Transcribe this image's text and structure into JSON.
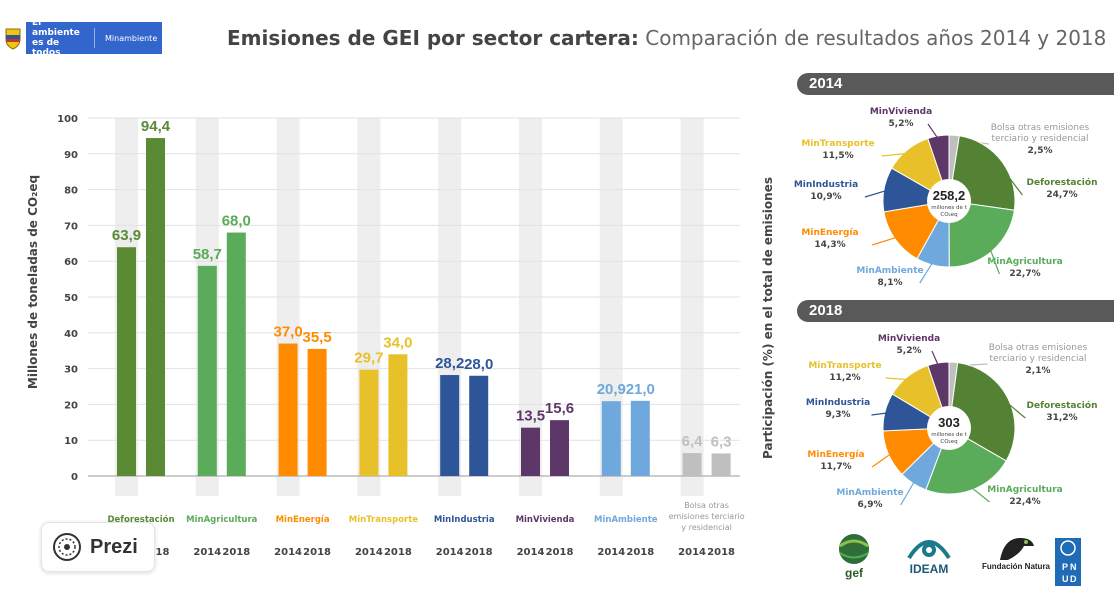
{
  "header": {
    "gov_line1": "El ambiente",
    "gov_line2": "es de todos",
    "ministry": "Minambiente",
    "title_bold": "Emisiones de GEI por sector cartera:",
    "title_rest": "Comparación de resultados años 2014 y 2018"
  },
  "prezi": {
    "label": "Prezi"
  },
  "logos": {
    "gef": "gef",
    "ideam": "IDEAM",
    "natura": "Fundación Natura",
    "pnud": "PNUD"
  },
  "chart_data": [
    {
      "type": "bar",
      "ylabel": "Millones de toneladas de CO₂eq",
      "ylim": [
        0,
        100
      ],
      "yticks": [
        0,
        10,
        20,
        30,
        40,
        50,
        60,
        70,
        80,
        90,
        100
      ],
      "grid": true,
      "categories": [
        "Deforestación",
        "MinAgricultura",
        "MinEnergía",
        "MinTransporte",
        "MinIndustria",
        "MinVivienda",
        "MinAmbiente",
        "Bolsa otras emisiones terciario y residencial"
      ],
      "category_colors": [
        "#5a8a34",
        "#5aab5a",
        "#ff8c00",
        "#e8c12a",
        "#2e5597",
        "#5e3769",
        "#6fa8dc",
        "#bfbfbf"
      ],
      "year_labels": [
        "2014",
        "2018"
      ],
      "series": [
        {
          "name": "2014",
          "values": [
            63.9,
            58.7,
            37.0,
            29.7,
            28.2,
            13.5,
            20.9,
            6.4
          ]
        },
        {
          "name": "2018",
          "values": [
            94.4,
            68.0,
            35.5,
            34.0,
            28.0,
            15.6,
            21.0,
            6.3
          ]
        }
      ],
      "value_labels": [
        [
          "63,9",
          "58,7",
          "37,0",
          "29,7",
          "28,2",
          "13,5",
          "20,9",
          "6,4"
        ],
        [
          "94,4",
          "68,0",
          "35,5",
          "34,0",
          "28,0",
          "15,6",
          "21,0",
          "6,3"
        ]
      ]
    },
    {
      "type": "pie",
      "title": "2014",
      "ylabel": "Participación (%) en el total de emisiones",
      "center_value": "258,2",
      "center_unit": "millones de t CO₂eq",
      "slices": [
        {
          "name": "Bolsa otras emisiones terciario y residencial",
          "value": 2.5,
          "label": "2,5%",
          "color": "#bfbfbf"
        },
        {
          "name": "Deforestación",
          "value": 24.7,
          "label": "24,7%",
          "color": "#548235"
        },
        {
          "name": "MinAgricultura",
          "value": 22.7,
          "label": "22,7%",
          "color": "#5aab5a"
        },
        {
          "name": "MinAmbiente",
          "value": 8.1,
          "label": "8,1%",
          "color": "#6fa8dc"
        },
        {
          "name": "MinEnergía",
          "value": 14.3,
          "label": "14,3%",
          "color": "#ff8c00"
        },
        {
          "name": "MinIndustria",
          "value": 10.9,
          "label": "10,9%",
          "color": "#2e5597"
        },
        {
          "name": "MinTransporte",
          "value": 11.5,
          "label": "11,5%",
          "color": "#e8c12a"
        },
        {
          "name": "MinVivienda",
          "value": 5.2,
          "label": "5,2%",
          "color": "#5e3769"
        }
      ]
    },
    {
      "type": "pie",
      "title": "2018",
      "center_value": "303",
      "center_unit": "millones de t CO₂eq",
      "slices": [
        {
          "name": "Bolsa otras emisiones terciario y residencial",
          "value": 2.1,
          "label": "2,1%",
          "color": "#bfbfbf"
        },
        {
          "name": "Deforestación",
          "value": 31.2,
          "label": "31,2%",
          "color": "#548235"
        },
        {
          "name": "MinAgricultura",
          "value": 22.4,
          "label": "22,4%",
          "color": "#5aab5a"
        },
        {
          "name": "MinAmbiente",
          "value": 6.9,
          "label": "6,9%",
          "color": "#6fa8dc"
        },
        {
          "name": "MinEnergía",
          "value": 11.7,
          "label": "11,7%",
          "color": "#ff8c00"
        },
        {
          "name": "MinIndustria",
          "value": 9.3,
          "label": "9,3%",
          "color": "#2e5597"
        },
        {
          "name": "MinTransporte",
          "value": 11.2,
          "label": "11,2%",
          "color": "#e8c12a"
        },
        {
          "name": "MinVivienda",
          "value": 5.2,
          "label": "5,2%",
          "color": "#5e3769"
        }
      ]
    }
  ]
}
